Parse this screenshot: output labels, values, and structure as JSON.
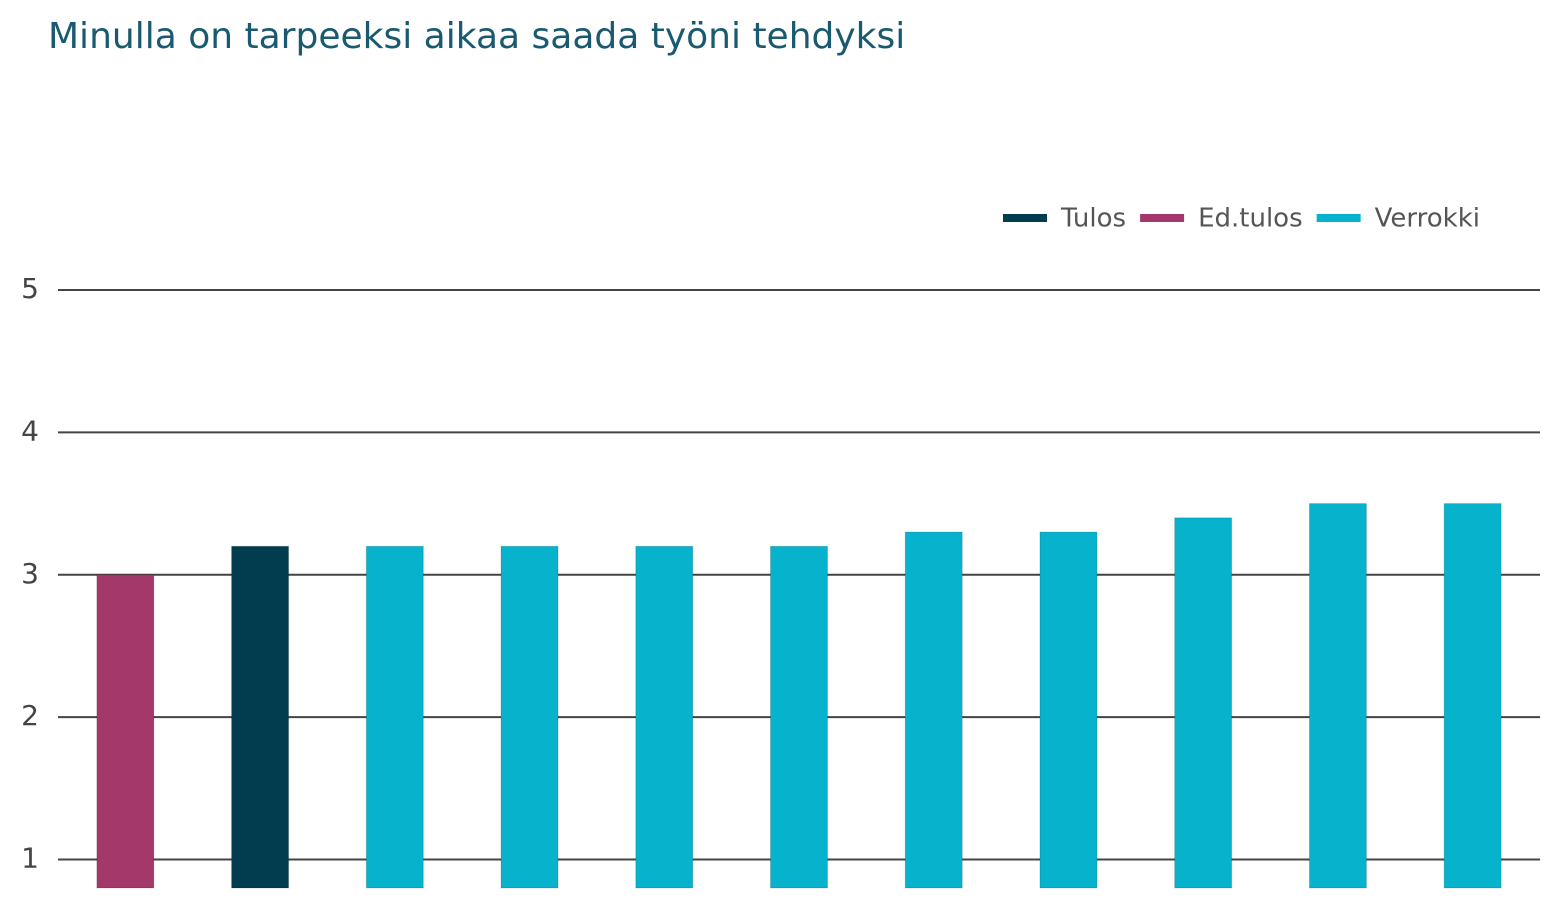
{
  "chart_data": {
    "type": "bar",
    "title": "Minulla on tarpeeksi aikaa saada työni tehdyksi",
    "categories": [
      null,
      null,
      null,
      null,
      null,
      null,
      null,
      null,
      null,
      null,
      null
    ],
    "series": [
      {
        "name": "Tulos",
        "color": "#023d4f",
        "values": [
          null,
          3.2,
          null,
          null,
          null,
          null,
          null,
          null,
          null,
          null,
          null
        ]
      },
      {
        "name": "Ed.tulos",
        "color": "#a3386a",
        "values": [
          3.0,
          null,
          null,
          null,
          null,
          null,
          null,
          null,
          null,
          null,
          null
        ]
      },
      {
        "name": "Verrokki",
        "color": "#07b3cc",
        "values": [
          null,
          null,
          3.2,
          3.2,
          3.2,
          3.2,
          3.3,
          3.3,
          3.4,
          3.5,
          3.5
        ]
      }
    ],
    "ylim": [
      0.8,
      5
    ],
    "yticks": [
      1,
      2,
      3,
      4,
      5
    ],
    "grid": true,
    "legend": "top-right"
  }
}
